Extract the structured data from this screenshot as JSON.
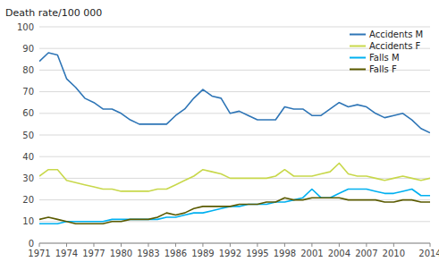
{
  "chart_data": {
    "type": "line",
    "ylabel": "Death rate/100 000",
    "x": [
      1971,
      1972,
      1973,
      1974,
      1975,
      1976,
      1977,
      1978,
      1979,
      1980,
      1981,
      1982,
      1983,
      1984,
      1985,
      1986,
      1987,
      1988,
      1989,
      1990,
      1991,
      1992,
      1993,
      1994,
      1995,
      1996,
      1997,
      1998,
      1999,
      2000,
      2001,
      2002,
      2003,
      2004,
      2005,
      2006,
      2007,
      2008,
      2009,
      2010,
      2011,
      2012,
      2013,
      2014
    ],
    "series": [
      {
        "name": "Accidents M",
        "color": "#2E75B6",
        "values": [
          84,
          88,
          87,
          76,
          72,
          67,
          65,
          62,
          62,
          60,
          57,
          55,
          55,
          55,
          55,
          59,
          62,
          67,
          71,
          68,
          67,
          60,
          61,
          59,
          57,
          57,
          57,
          63,
          62,
          62,
          59,
          59,
          62,
          65,
          63,
          64,
          63,
          60,
          58,
          59,
          60,
          57,
          53,
          51
        ]
      },
      {
        "name": "Accidents F",
        "color": "#C8D84B",
        "values": [
          31,
          34,
          34,
          29,
          28,
          27,
          26,
          25,
          25,
          24,
          24,
          24,
          24,
          25,
          25,
          27,
          29,
          31,
          34,
          33,
          32,
          30,
          30,
          30,
          30,
          30,
          31,
          34,
          31,
          31,
          31,
          32,
          33,
          37,
          32,
          31,
          31,
          30,
          29,
          30,
          31,
          30,
          29,
          30
        ]
      },
      {
        "name": "Falls M",
        "color": "#00B0F0",
        "values": [
          9,
          9,
          9,
          10,
          10,
          10,
          10,
          10,
          11,
          11,
          11,
          11,
          11,
          11,
          12,
          12,
          13,
          14,
          14,
          15,
          16,
          17,
          17,
          18,
          18,
          18,
          19,
          19,
          20,
          21,
          25,
          21,
          21,
          23,
          25,
          25,
          25,
          24,
          23,
          23,
          24,
          25,
          22,
          22
        ]
      },
      {
        "name": "Falls F",
        "color": "#5A5A00",
        "values": [
          11,
          12,
          11,
          10,
          9,
          9,
          9,
          9,
          10,
          10,
          11,
          11,
          11,
          12,
          14,
          13,
          14,
          16,
          17,
          17,
          17,
          17,
          18,
          18,
          18,
          19,
          19,
          21,
          20,
          20,
          21,
          21,
          21,
          21,
          20,
          20,
          20,
          20,
          19,
          19,
          20,
          20,
          19,
          19
        ]
      }
    ],
    "xlim": [
      1971,
      2014
    ],
    "xticks": [
      1971,
      1974,
      1977,
      1980,
      1983,
      1986,
      1989,
      1992,
      1995,
      1998,
      2001,
      2004,
      2007,
      2010,
      2014
    ],
    "ylim": [
      0,
      100
    ],
    "yticks": [
      0,
      10,
      20,
      30,
      40,
      50,
      60,
      70,
      80,
      90,
      100
    ],
    "grid": true,
    "legend": "upper right"
  }
}
